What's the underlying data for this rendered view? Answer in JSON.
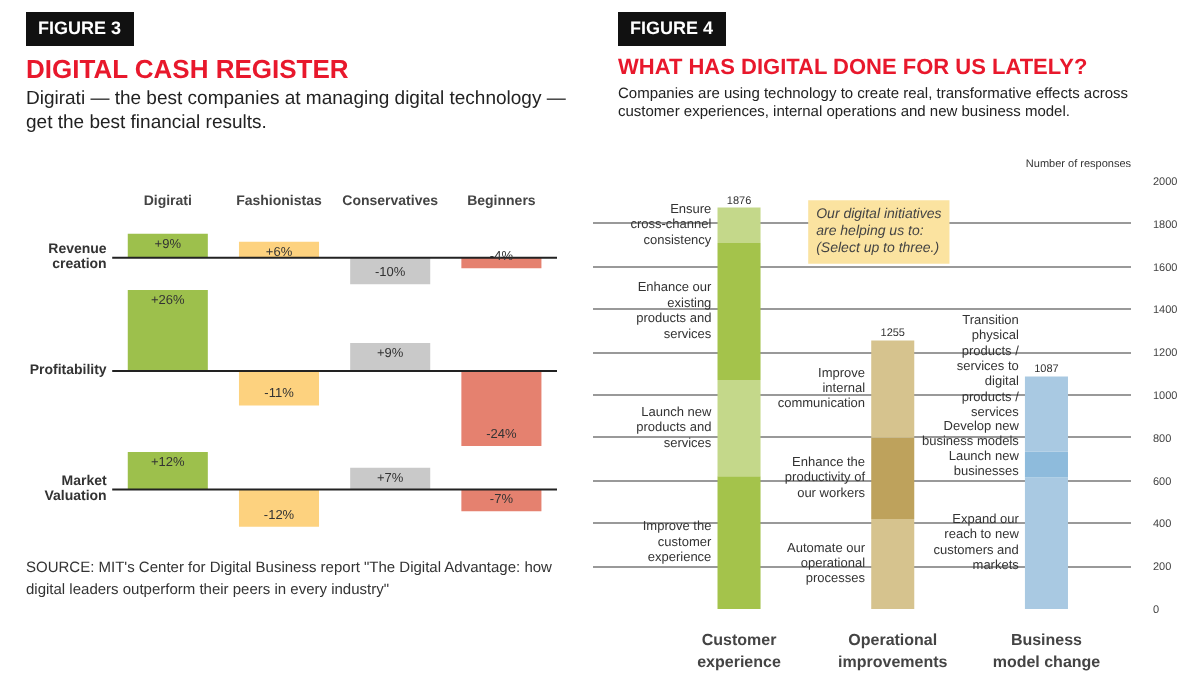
{
  "chart_data": [
    {
      "type": "bar",
      "title": "DIGITAL CASH REGISTER",
      "subtitle": "Digirati — the best companies at managing digital technology — get the best financial results.",
      "annotations": [
        "FIGURE 3"
      ],
      "ylabel": "Revenue creation",
      "categories": [
        "Digirati",
        "Fashionistas",
        "Conservatives",
        "Beginners"
      ],
      "values": [
        9,
        6,
        -10,
        -4
      ],
      "colors": [
        "#9dc04c",
        "#fdd27f",
        "#c9c9c9",
        "#e5816f"
      ],
      "value_labels": [
        "+9%",
        "+6%",
        "-10%",
        "-4%"
      ],
      "ylim": [
        -11,
        10
      ]
    },
    {
      "type": "bar",
      "ylabel": "Profitability",
      "categories": [
        "Digirati",
        "Fashionistas",
        "Conservatives",
        "Beginners"
      ],
      "values": [
        26,
        -11,
        9,
        -24
      ],
      "colors": [
        "#9dc04c",
        "#fdd27f",
        "#c9c9c9",
        "#e5816f"
      ],
      "value_labels": [
        "+26%",
        "-11%",
        "+9%",
        "-24%"
      ],
      "ylim": [
        -25,
        27
      ],
      "tick_labels": false
    },
    {
      "type": "bar",
      "ylabel": "Market Valuation",
      "categories": [
        "Digirati",
        "Fashionistas",
        "Conservatives",
        "Beginners"
      ],
      "values": [
        12,
        -12,
        7,
        -7
      ],
      "colors": [
        "#9dc04c",
        "#fdd27f",
        "#c9c9c9",
        "#e5816f"
      ],
      "value_labels": [
        "+12%",
        "-12%",
        "+7%",
        "-7%"
      ],
      "ylim": [
        -14,
        13
      ],
      "tick_labels": false,
      "annotations": [
        "SOURCE: MIT's Center for Digital Business report \"The Digital Advantage: how digital leaders outperform their peers in every industry\""
      ]
    },
    {
      "type": "bar",
      "stacked": true,
      "title": "WHAT HAS DIGITAL DONE FOR US LATELY?",
      "subtitle": "Companies are using technology to create real, transformative effects across customer experiences, internal operations and new business model.",
      "annotations": [
        "FIGURE 4",
        "Our digital initiatives are helping us to: (Select up to three.)"
      ],
      "ylabel": "Number of responses",
      "categories": [
        "Customer experience",
        "Operational improvements",
        "Business model change"
      ],
      "ylim": [
        0,
        2000
      ],
      "yticks": [
        0,
        200,
        400,
        600,
        800,
        1000,
        1200,
        1400,
        1600,
        1800,
        2000
      ],
      "grid": "y",
      "totals": [
        "1876",
        "1255",
        "1087"
      ],
      "series": [
        {
          "name": "Improve the customer experience",
          "color": "#a4c34b",
          "values": [
            620,
            null,
            null
          ]
        },
        {
          "name": "Launch new products and services",
          "color": "#c4d88a",
          "values": [
            450,
            null,
            null
          ]
        },
        {
          "name": "Enhance our existing products and services",
          "color": "#a4c34b",
          "values": [
            640,
            null,
            null
          ]
        },
        {
          "name": "Ensure cross-channel consistency",
          "color": "#c4d88a",
          "values": [
            166,
            null,
            null
          ]
        },
        {
          "name": "Automate our operational processes",
          "color": "#d6c38e",
          "values": [
            null,
            420,
            null
          ]
        },
        {
          "name": "Enhance the productivity of our workers",
          "color": "#bea25c",
          "values": [
            null,
            380,
            null
          ]
        },
        {
          "name": "Improve internal communication",
          "color": "#d6c38e",
          "values": [
            null,
            455,
            null
          ]
        },
        {
          "name": "Expand our reach to new customers and markets",
          "color": "#a9c9e2",
          "values": [
            null,
            null,
            615
          ]
        },
        {
          "name": "Launch new businesses",
          "color": "#8ebbdc",
          "values": [
            null,
            null,
            120
          ]
        },
        {
          "name": "Develop new business models",
          "color": "#a9c9e2",
          "values": [
            null,
            null,
            125
          ]
        },
        {
          "name": "Transition physical products / services to digital products / services",
          "color": "#a9c9e2",
          "values": [
            null,
            null,
            227
          ]
        }
      ]
    }
  ]
}
